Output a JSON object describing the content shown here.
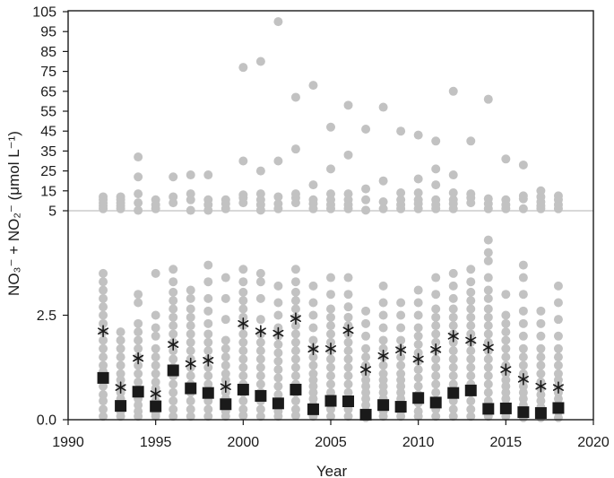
{
  "chart_data": {
    "type": "scatter",
    "title": "",
    "xlabel": "Year",
    "ylabel": "NO₃⁻ + NO₂⁻ (μmol L⁻¹)",
    "xlim": [
      1990,
      2020
    ],
    "x_ticks": [
      "1990",
      "1995",
      "2000",
      "2005",
      "2010",
      "2015",
      "2020"
    ],
    "y_scale": "split: linear 0–5, compressed 5–105",
    "y_ticks_lower": [
      "0.0",
      "2.5",
      "5"
    ],
    "y_ticks_upper": [
      "15",
      "25",
      "35",
      "45",
      "55",
      "65",
      "75",
      "85",
      "95",
      "105"
    ],
    "reference_line_y": 5,
    "grid": false,
    "legend": "none",
    "colors": {
      "points": "#c2c2c2",
      "median": "#1a1a1a",
      "mean": "#1a1a1a",
      "axis": "#1a1a1a",
      "reference": "#cccccc"
    },
    "series": [
      {
        "marker": "filled-square",
        "points": [
          {
            "x": 1992,
            "y": 1.0
          },
          {
            "x": 1993,
            "y": 0.33
          },
          {
            "x": 1994,
            "y": 0.67
          },
          {
            "x": 1995,
            "y": 0.32
          },
          {
            "x": 1996,
            "y": 1.18
          },
          {
            "x": 1997,
            "y": 0.75
          },
          {
            "x": 1998,
            "y": 0.64
          },
          {
            "x": 1999,
            "y": 0.37
          },
          {
            "x": 2000,
            "y": 0.72
          },
          {
            "x": 2001,
            "y": 0.57
          },
          {
            "x": 2002,
            "y": 0.39
          },
          {
            "x": 2003,
            "y": 0.72
          },
          {
            "x": 2004,
            "y": 0.25
          },
          {
            "x": 2005,
            "y": 0.45
          },
          {
            "x": 2006,
            "y": 0.44
          },
          {
            "x": 2007,
            "y": 0.12
          },
          {
            "x": 2008,
            "y": 0.35
          },
          {
            "x": 2009,
            "y": 0.31
          },
          {
            "x": 2010,
            "y": 0.52
          },
          {
            "x": 2011,
            "y": 0.41
          },
          {
            "x": 2012,
            "y": 0.64
          },
          {
            "x": 2013,
            "y": 0.7
          },
          {
            "x": 2014,
            "y": 0.26
          },
          {
            "x": 2015,
            "y": 0.27
          },
          {
            "x": 2016,
            "y": 0.18
          },
          {
            "x": 2017,
            "y": 0.16
          },
          {
            "x": 2018,
            "y": 0.28
          }
        ]
      },
      {
        "marker": "asterisk",
        "points": [
          {
            "x": 1992,
            "y": 2.12
          },
          {
            "x": 1993,
            "y": 0.77
          },
          {
            "x": 1994,
            "y": 1.47
          },
          {
            "x": 1995,
            "y": 0.62
          },
          {
            "x": 1996,
            "y": 1.8
          },
          {
            "x": 1997,
            "y": 1.34
          },
          {
            "x": 1998,
            "y": 1.42
          },
          {
            "x": 1999,
            "y": 0.79
          },
          {
            "x": 2000,
            "y": 2.3
          },
          {
            "x": 2001,
            "y": 2.12
          },
          {
            "x": 2002,
            "y": 2.07
          },
          {
            "x": 2003,
            "y": 2.42
          },
          {
            "x": 2004,
            "y": 1.69
          },
          {
            "x": 2005,
            "y": 1.7
          },
          {
            "x": 2006,
            "y": 2.14
          },
          {
            "x": 2007,
            "y": 1.2
          },
          {
            "x": 2008,
            "y": 1.53
          },
          {
            "x": 2009,
            "y": 1.67
          },
          {
            "x": 2010,
            "y": 1.45
          },
          {
            "x": 2011,
            "y": 1.68
          },
          {
            "x": 2012,
            "y": 2.0
          },
          {
            "x": 2013,
            "y": 1.9
          },
          {
            "x": 2014,
            "y": 1.73
          },
          {
            "x": 2015,
            "y": 1.2
          },
          {
            "x": 2016,
            "y": 0.97
          },
          {
            "x": 2017,
            "y": 0.8
          },
          {
            "x": 2018,
            "y": 0.77
          }
        ]
      },
      {
        "marker": "grey-circle",
        "points_by_year": [
          {
            "x": 1992,
            "values": [
              0.08,
              0.25,
              0.45,
              0.6,
              0.8,
              1.0,
              1.15,
              1.3,
              1.5,
              1.7,
              1.9,
              2.1,
              2.3,
              2.5,
              2.7,
              2.9,
              3.1,
              3.3,
              3.5,
              6.0,
              7.5,
              9.0,
              10.5,
              12.0
            ]
          },
          {
            "x": 1993,
            "values": [
              0.08,
              0.2,
              0.35,
              0.5,
              0.65,
              0.8,
              0.95,
              1.1,
              1.3,
              1.5,
              1.7,
              1.9,
              2.1,
              6.0,
              7.5,
              9.0,
              10.5,
              12.0
            ]
          },
          {
            "x": 1994,
            "values": [
              0.08,
              0.2,
              0.35,
              0.5,
              0.7,
              0.9,
              1.1,
              1.3,
              1.5,
              1.7,
              1.9,
              2.1,
              2.3,
              2.8,
              3.0,
              5.2,
              9.0,
              13.5,
              22.0,
              32.0
            ]
          },
          {
            "x": 1995,
            "values": [
              0.08,
              0.15,
              0.3,
              0.45,
              0.6,
              0.75,
              0.9,
              1.1,
              1.3,
              1.5,
              1.7,
              2.0,
              2.2,
              2.5,
              3.5,
              6.0,
              8.0,
              10.5
            ]
          },
          {
            "x": 1996,
            "values": [
              0.08,
              0.25,
              0.45,
              0.65,
              0.85,
              1.05,
              1.25,
              1.45,
              1.65,
              1.85,
              2.05,
              2.25,
              2.45,
              2.65,
              2.85,
              3.05,
              3.3,
              3.6,
              9.0,
              12.0,
              22.0
            ]
          },
          {
            "x": 1997,
            "values": [
              0.08,
              0.25,
              0.45,
              0.65,
              0.85,
              1.05,
              1.25,
              1.45,
              1.65,
              1.85,
              2.05,
              2.25,
              2.45,
              2.65,
              2.9,
              3.1,
              5.2,
              10.5,
              13.5,
              23.0
            ]
          },
          {
            "x": 1998,
            "values": [
              0.08,
              0.25,
              0.45,
              0.65,
              0.85,
              1.05,
              1.25,
              1.45,
              1.65,
              1.85,
              2.05,
              2.3,
              2.6,
              2.9,
              3.3,
              3.7,
              5.2,
              8.0,
              10.5,
              23.0
            ]
          },
          {
            "x": 1999,
            "values": [
              0.08,
              0.2,
              0.35,
              0.5,
              0.65,
              0.8,
              0.95,
              1.1,
              1.3,
              1.5,
              1.7,
              1.9,
              2.4,
              2.9,
              3.4,
              6.0,
              8.5,
              10.5
            ]
          },
          {
            "x": 2000,
            "values": [
              0.1,
              0.25,
              0.45,
              0.65,
              0.85,
              1.05,
              1.25,
              1.45,
              1.65,
              1.85,
              2.05,
              2.25,
              2.45,
              2.65,
              2.85,
              3.05,
              3.3,
              3.6,
              9.0,
              11.5,
              13.0,
              30.0,
              77.0
            ]
          },
          {
            "x": 2001,
            "values": [
              0.08,
              0.25,
              0.45,
              0.65,
              0.85,
              1.05,
              1.25,
              1.45,
              1.65,
              1.85,
              2.05,
              2.4,
              2.9,
              3.3,
              3.5,
              5.3,
              8.0,
              10.5,
              13.5,
              25.0,
              80.0
            ]
          },
          {
            "x": 2002,
            "values": [
              0.08,
              0.2,
              0.4,
              0.6,
              0.8,
              1.0,
              1.2,
              1.4,
              1.6,
              1.8,
              2.0,
              2.2,
              2.5,
              2.8,
              3.2,
              6.0,
              8.5,
              12.0,
              30.0,
              100.0
            ]
          },
          {
            "x": 2003,
            "values": [
              0.1,
              0.25,
              0.45,
              0.65,
              0.85,
              1.05,
              1.25,
              1.45,
              1.65,
              1.85,
              2.05,
              2.25,
              2.45,
              2.65,
              2.85,
              3.05,
              3.3,
              3.6,
              9.0,
              11.5,
              13.5,
              36.0,
              62.0
            ]
          },
          {
            "x": 2004,
            "values": [
              0.08,
              0.2,
              0.35,
              0.5,
              0.65,
              0.8,
              0.95,
              1.1,
              1.3,
              1.5,
              1.7,
              1.9,
              2.2,
              2.5,
              2.8,
              3.2,
              6.0,
              8.5,
              10.5,
              18.0,
              68.0
            ]
          },
          {
            "x": 2005,
            "values": [
              0.08,
              0.25,
              0.45,
              0.65,
              0.85,
              1.05,
              1.25,
              1.45,
              1.65,
              1.85,
              2.05,
              2.25,
              2.45,
              2.65,
              3.0,
              3.4,
              6.0,
              8.0,
              10.5,
              13.5,
              26.0,
              47.0
            ]
          },
          {
            "x": 2006,
            "values": [
              0.08,
              0.25,
              0.45,
              0.65,
              0.85,
              1.05,
              1.25,
              1.45,
              1.65,
              1.85,
              2.05,
              2.25,
              2.45,
              2.7,
              3.0,
              3.4,
              6.0,
              8.0,
              10.5,
              13.5,
              33.0,
              58.0
            ]
          },
          {
            "x": 2007,
            "values": [
              0.05,
              0.2,
              0.35,
              0.5,
              0.65,
              0.8,
              0.95,
              1.1,
              1.3,
              1.5,
              1.7,
              2.0,
              2.3,
              2.6,
              5.3,
              10.5,
              16.0,
              46.0
            ]
          },
          {
            "x": 2008,
            "values": [
              0.08,
              0.2,
              0.35,
              0.5,
              0.65,
              0.8,
              0.95,
              1.1,
              1.3,
              1.5,
              1.7,
              1.9,
              2.2,
              2.5,
              2.8,
              3.2,
              6.0,
              9.5,
              20.0,
              57.0
            ]
          },
          {
            "x": 2009,
            "values": [
              0.08,
              0.2,
              0.35,
              0.5,
              0.65,
              0.8,
              0.95,
              1.1,
              1.3,
              1.5,
              1.7,
              1.9,
              2.2,
              2.5,
              2.8,
              6.0,
              8.0,
              10.5,
              14.0,
              45.0
            ]
          },
          {
            "x": 2010,
            "values": [
              0.08,
              0.2,
              0.4,
              0.6,
              0.8,
              1.0,
              1.2,
              1.4,
              1.6,
              1.8,
              2.0,
              2.2,
              2.5,
              2.8,
              3.1,
              6.0,
              8.5,
              10.5,
              14.0,
              21.0,
              43.0
            ]
          },
          {
            "x": 2011,
            "values": [
              0.08,
              0.25,
              0.45,
              0.65,
              0.85,
              1.05,
              1.25,
              1.45,
              1.65,
              1.85,
              2.05,
              2.25,
              2.45,
              2.65,
              3.0,
              3.4,
              6.0,
              8.0,
              10.5,
              18.0,
              26.0,
              40.0
            ]
          },
          {
            "x": 2012,
            "values": [
              0.08,
              0.25,
              0.45,
              0.65,
              0.85,
              1.05,
              1.25,
              1.45,
              1.65,
              1.85,
              2.05,
              2.25,
              2.45,
              2.65,
              2.9,
              3.2,
              3.5,
              6.0,
              8.5,
              10.5,
              14.0,
              23.0,
              65.0
            ]
          },
          {
            "x": 2013,
            "values": [
              0.08,
              0.25,
              0.45,
              0.65,
              0.85,
              1.05,
              1.25,
              1.45,
              1.65,
              1.85,
              2.05,
              2.25,
              2.45,
              2.65,
              2.85,
              3.05,
              3.3,
              3.6,
              9.0,
              11.5,
              13.5,
              40.0
            ]
          },
          {
            "x": 2014,
            "values": [
              0.08,
              0.25,
              0.45,
              0.65,
              0.85,
              1.05,
              1.25,
              1.45,
              1.65,
              1.85,
              2.05,
              2.25,
              2.45,
              2.65,
              2.9,
              3.1,
              3.4,
              3.8,
              4.0,
              4.3,
              6.0,
              8.5,
              11.0,
              61.0
            ]
          },
          {
            "x": 2015,
            "values": [
              0.08,
              0.2,
              0.35,
              0.5,
              0.65,
              0.8,
              0.95,
              1.1,
              1.3,
              1.5,
              1.7,
              1.9,
              2.1,
              2.3,
              2.5,
              3.0,
              6.0,
              8.0,
              10.5,
              31.0
            ]
          },
          {
            "x": 2016,
            "values": [
              0.05,
              0.2,
              0.35,
              0.5,
              0.65,
              0.8,
              0.95,
              1.1,
              1.3,
              1.5,
              1.7,
              2.0,
              2.3,
              2.6,
              3.0,
              3.4,
              3.7,
              6.0,
              11.0,
              12.5,
              28.0
            ]
          },
          {
            "x": 2017,
            "values": [
              0.05,
              0.15,
              0.3,
              0.45,
              0.6,
              0.75,
              0.9,
              1.1,
              1.3,
              1.5,
              1.7,
              2.0,
              2.3,
              2.6,
              6.0,
              7.5,
              9.5,
              12.0,
              15.0
            ]
          },
          {
            "x": 2018,
            "values": [
              0.05,
              0.2,
              0.35,
              0.5,
              0.65,
              0.8,
              0.95,
              1.1,
              1.3,
              1.5,
              1.7,
              2.0,
              2.4,
              2.8,
              3.2,
              6.0,
              8.0,
              10.5,
              12.5
            ]
          }
        ]
      }
    ]
  }
}
